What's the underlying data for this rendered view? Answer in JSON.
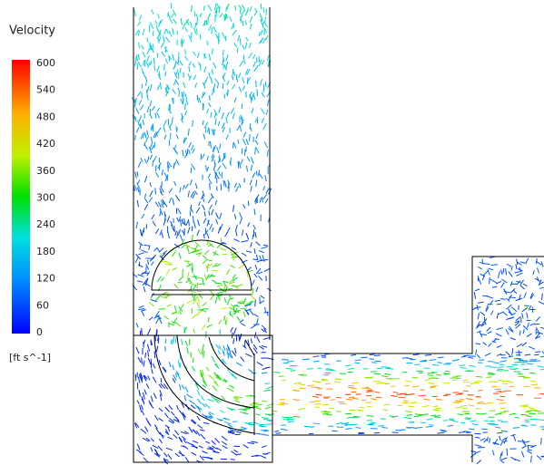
{
  "legend": {
    "title": "Velocity",
    "ticks": [
      "600",
      "540",
      "480",
      "420",
      "360",
      "300",
      "240",
      "180",
      "120",
      "60",
      "0"
    ],
    "unit": "[ft s^-1]"
  }
}
